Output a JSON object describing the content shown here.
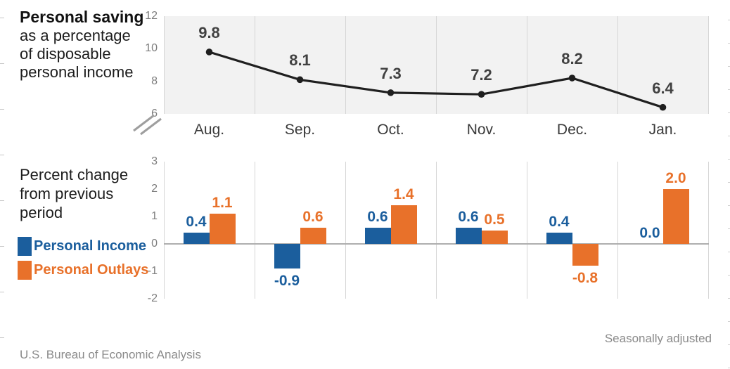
{
  "header": {
    "title": "Personal saving",
    "subtitle_lines": [
      "as a percentage",
      "of disposable",
      "personal income"
    ]
  },
  "bottom_panel": {
    "title_lines": [
      "Percent change",
      "from previous",
      "period"
    ]
  },
  "footer": {
    "source": "U.S. Bureau of Economic Analysis",
    "note": "Seasonally adjusted"
  },
  "colors": {
    "income_blue": "#1b5e9d",
    "outlays_orange": "#e8712a",
    "line_black": "#1f1f1f",
    "label_dark": "#414141",
    "axis_gray": "#7d7d7d",
    "plot_bg": "#f2f2f2",
    "gridline": "#d6d6d6",
    "zero_line": "#aeaeae",
    "footer_gray": "#8a8a8a"
  },
  "chart_data": [
    {
      "type": "line",
      "title": "Personal saving as a percentage of disposable personal income",
      "x": [
        "Aug.",
        "Sep.",
        "Oct.",
        "Nov.",
        "Dec.",
        "Jan."
      ],
      "values": [
        9.8,
        8.1,
        7.3,
        7.2,
        8.2,
        6.4
      ],
      "ylim": [
        6,
        12
      ],
      "yticks": [
        12,
        10,
        8,
        6
      ],
      "axis_break": true,
      "grid": "vertical-only",
      "marker": "filled-circle",
      "legend_position": "none"
    },
    {
      "type": "bar",
      "title": "Percent change from previous period",
      "categories": [
        "Aug.",
        "Sep.",
        "Oct.",
        "Nov.",
        "Dec.",
        "Jan."
      ],
      "series": [
        {
          "name": "Personal Income",
          "color": "#1b5e9d",
          "values": [
            0.4,
            -0.9,
            0.6,
            0.6,
            0.4,
            0.0
          ]
        },
        {
          "name": "Personal Outlays",
          "color": "#e8712a",
          "values": [
            1.1,
            0.6,
            1.4,
            0.5,
            -0.8,
            2.0
          ]
        }
      ],
      "ylim": [
        -2,
        3
      ],
      "yticks": [
        3,
        2,
        1,
        0,
        -1,
        -2
      ],
      "grid": "vertical-only",
      "legend_position": "left",
      "note": "Seasonally adjusted"
    }
  ]
}
